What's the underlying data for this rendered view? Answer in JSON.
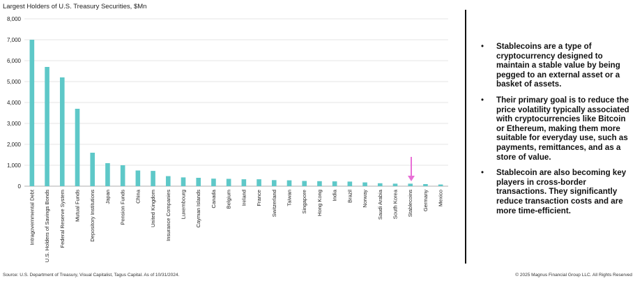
{
  "chart_data": {
    "type": "bar",
    "title": "Largest Holders of U.S. Treasury Securities, $Mn",
    "categories": [
      "Intragovernmental Debt",
      "U.S. Holders of Savings Bonds",
      "Federal Reserve System",
      "Mutual Funds",
      "Depository Institutions",
      "Japan",
      "Pension Funds",
      "China",
      "United Kingdom",
      "Insurance Companies",
      "Luxembourg",
      "Cayman Islands",
      "Canada",
      "Belgium",
      "Ireland",
      "France",
      "Switzerland",
      "Taiwan",
      "Singapore",
      "Hong Kong",
      "India",
      "Brazil",
      "Norway",
      "Saudi Arabia",
      "South Korea",
      "Stablecoins",
      "Germany",
      "Mexico"
    ],
    "values": [
      7000,
      5700,
      5200,
      3700,
      1600,
      1100,
      1000,
      750,
      730,
      480,
      420,
      400,
      360,
      350,
      330,
      330,
      290,
      280,
      250,
      240,
      230,
      220,
      180,
      140,
      120,
      120,
      100,
      80
    ],
    "color": "#5ec8c8",
    "ylim": [
      0,
      8000
    ],
    "yticks": [
      0,
      {
        "value": 1000,
        "label": "1,000"
      },
      {
        "value": 2000,
        "label": "2,000"
      },
      {
        "value": 3000,
        "label": "3,000"
      },
      {
        "value": 4000,
        "label": "4,000"
      },
      {
        "value": 5000,
        "label": "5,000"
      },
      {
        "value": 6000,
        "label": "6,000"
      },
      {
        "value": 7000,
        "label": "7,000"
      },
      {
        "value": 8000,
        "label": "8,000"
      }
    ],
    "grid": true
  },
  "notes": [
    "Stablecoins are a type of cryptocurrency designed to maintain a stable value by being pegged to an external asset or a basket of assets.",
    "Their primary goal is to reduce the price volatility typically associated with cryptocurrencies like Bitcoin or Ethereum, making them more suitable for everyday use, such as payments, remittances, and as a store of value.",
    "Stablecoin are also becoming key players in cross-border transactions. They significantly reduce transaction costs and are more time-efficient."
  ],
  "footer": {
    "source": "Source: U.S. Department of Treasury, Visual Capitalist, Tagus Capital. As of 10/31/2024.",
    "copyright": "© 2025 Magnus Financial Group LLC. All Rights Reserved"
  }
}
